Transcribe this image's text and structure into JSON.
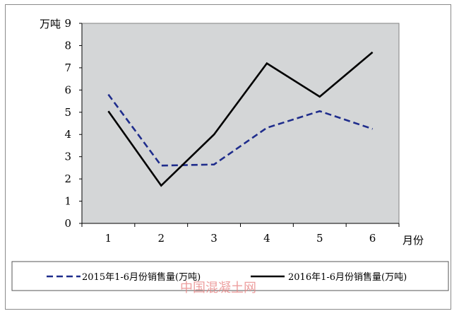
{
  "chart_data": {
    "type": "line",
    "ylabel": "万吨",
    "xlabel": "月份",
    "categories": [
      "1",
      "2",
      "3",
      "4",
      "5",
      "6"
    ],
    "y_ticks": [
      "0",
      "1",
      "2",
      "3",
      "4",
      "5",
      "6",
      "7",
      "8",
      "9"
    ],
    "ylim": [
      0,
      9
    ],
    "grid": false,
    "legend_position": "bottom",
    "series": [
      {
        "name": "2015年1-6月份销售量(万吨)",
        "values": [
          5.8,
          2.6,
          2.65,
          4.3,
          5.05,
          4.25
        ],
        "color": "#1f2d8c",
        "dash": true
      },
      {
        "name": "2016年1-6月份销售量(万吨)",
        "values": [
          5.05,
          1.7,
          4.0,
          7.2,
          5.7,
          7.7
        ],
        "color": "#000000",
        "dash": false
      }
    ],
    "plot_background": "#d4d6d7"
  },
  "watermark": "中国混凝土网"
}
